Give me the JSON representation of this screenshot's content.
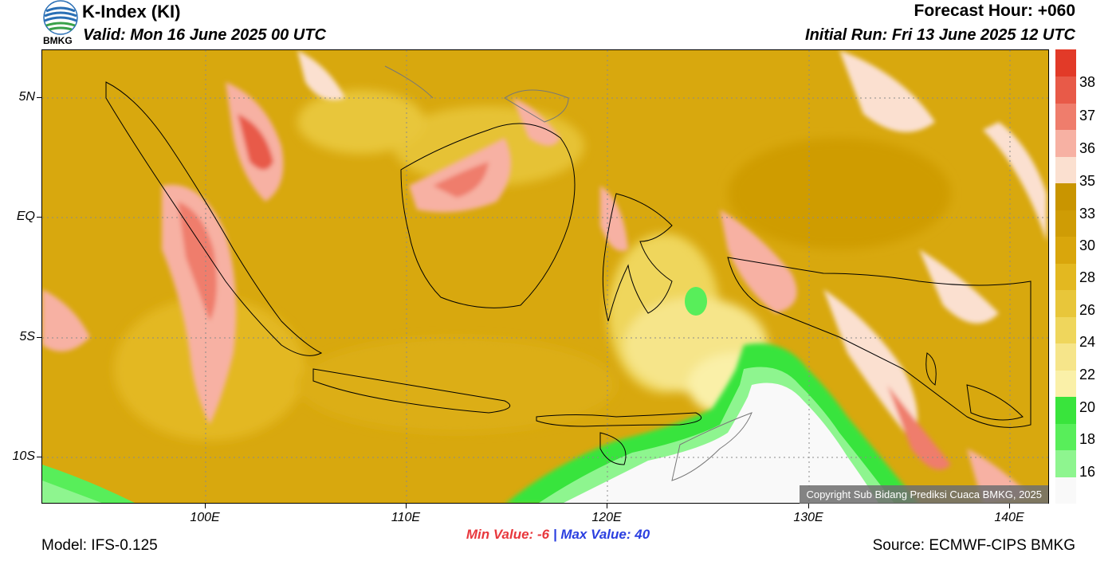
{
  "header": {
    "title": "K-Index (KI)",
    "valid": "Valid: Mon 16 June 2025 00 UTC",
    "forecast_hour": "Forecast Hour: +060",
    "initial_run": "Initial Run: Fri 13 June 2025 12 UTC",
    "logo_text": "BMKG"
  },
  "map": {
    "lat_labels": [
      "5N",
      "EQ",
      "5S",
      "10S"
    ],
    "lon_labels": [
      "100E",
      "110E",
      "120E",
      "130E",
      "140E"
    ],
    "copyright": "Copyright Sub Bidang Prediksi Cuaca BMKG, 2025"
  },
  "stats": {
    "min_label": "Min Value:",
    "min_value": "-6",
    "separator": "|",
    "max_label": "Max Value:",
    "max_value": "40"
  },
  "footer": {
    "model": "Model: IFS-0.125",
    "source": "Source: ECMWF-CIPS BMKG"
  },
  "colorbar": {
    "labels": [
      "38",
      "37",
      "36",
      "35",
      "33",
      "30",
      "28",
      "26",
      "24",
      "22",
      "20",
      "18",
      "16"
    ],
    "colors": [
      "#f9f9f9",
      "#8ef58f",
      "#58ee5a",
      "#39e43c",
      "#faf0a8",
      "#f6e58a",
      "#efd65c",
      "#e8c63a",
      "#e3b820",
      "#d9a60c",
      "#cf9c05",
      "#c99500",
      "#fbe0d0",
      "#f7b1a3",
      "#ef7d6c",
      "#e85a48",
      "#e23a28"
    ]
  }
}
